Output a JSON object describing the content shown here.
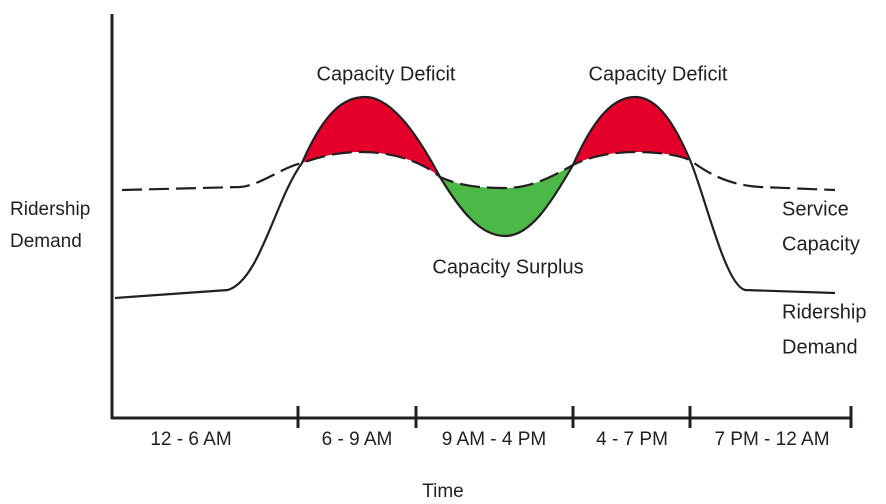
{
  "axis": {
    "y_label": [
      "Ridership",
      "Demand"
    ],
    "x_label": "Time",
    "periods": [
      "12 - 6 AM",
      "6 - 9 AM",
      "9 AM - 4 PM",
      "4 - 7 PM",
      "7 PM - 12 AM"
    ]
  },
  "annotations": {
    "deficit_morning": "Capacity Deficit",
    "deficit_evening": "Capacity Deficit",
    "surplus": "Capacity Surplus"
  },
  "curve_labels": {
    "capacity": [
      "Service",
      "Capacity"
    ],
    "demand": [
      "Ridership",
      "Demand"
    ]
  }
}
